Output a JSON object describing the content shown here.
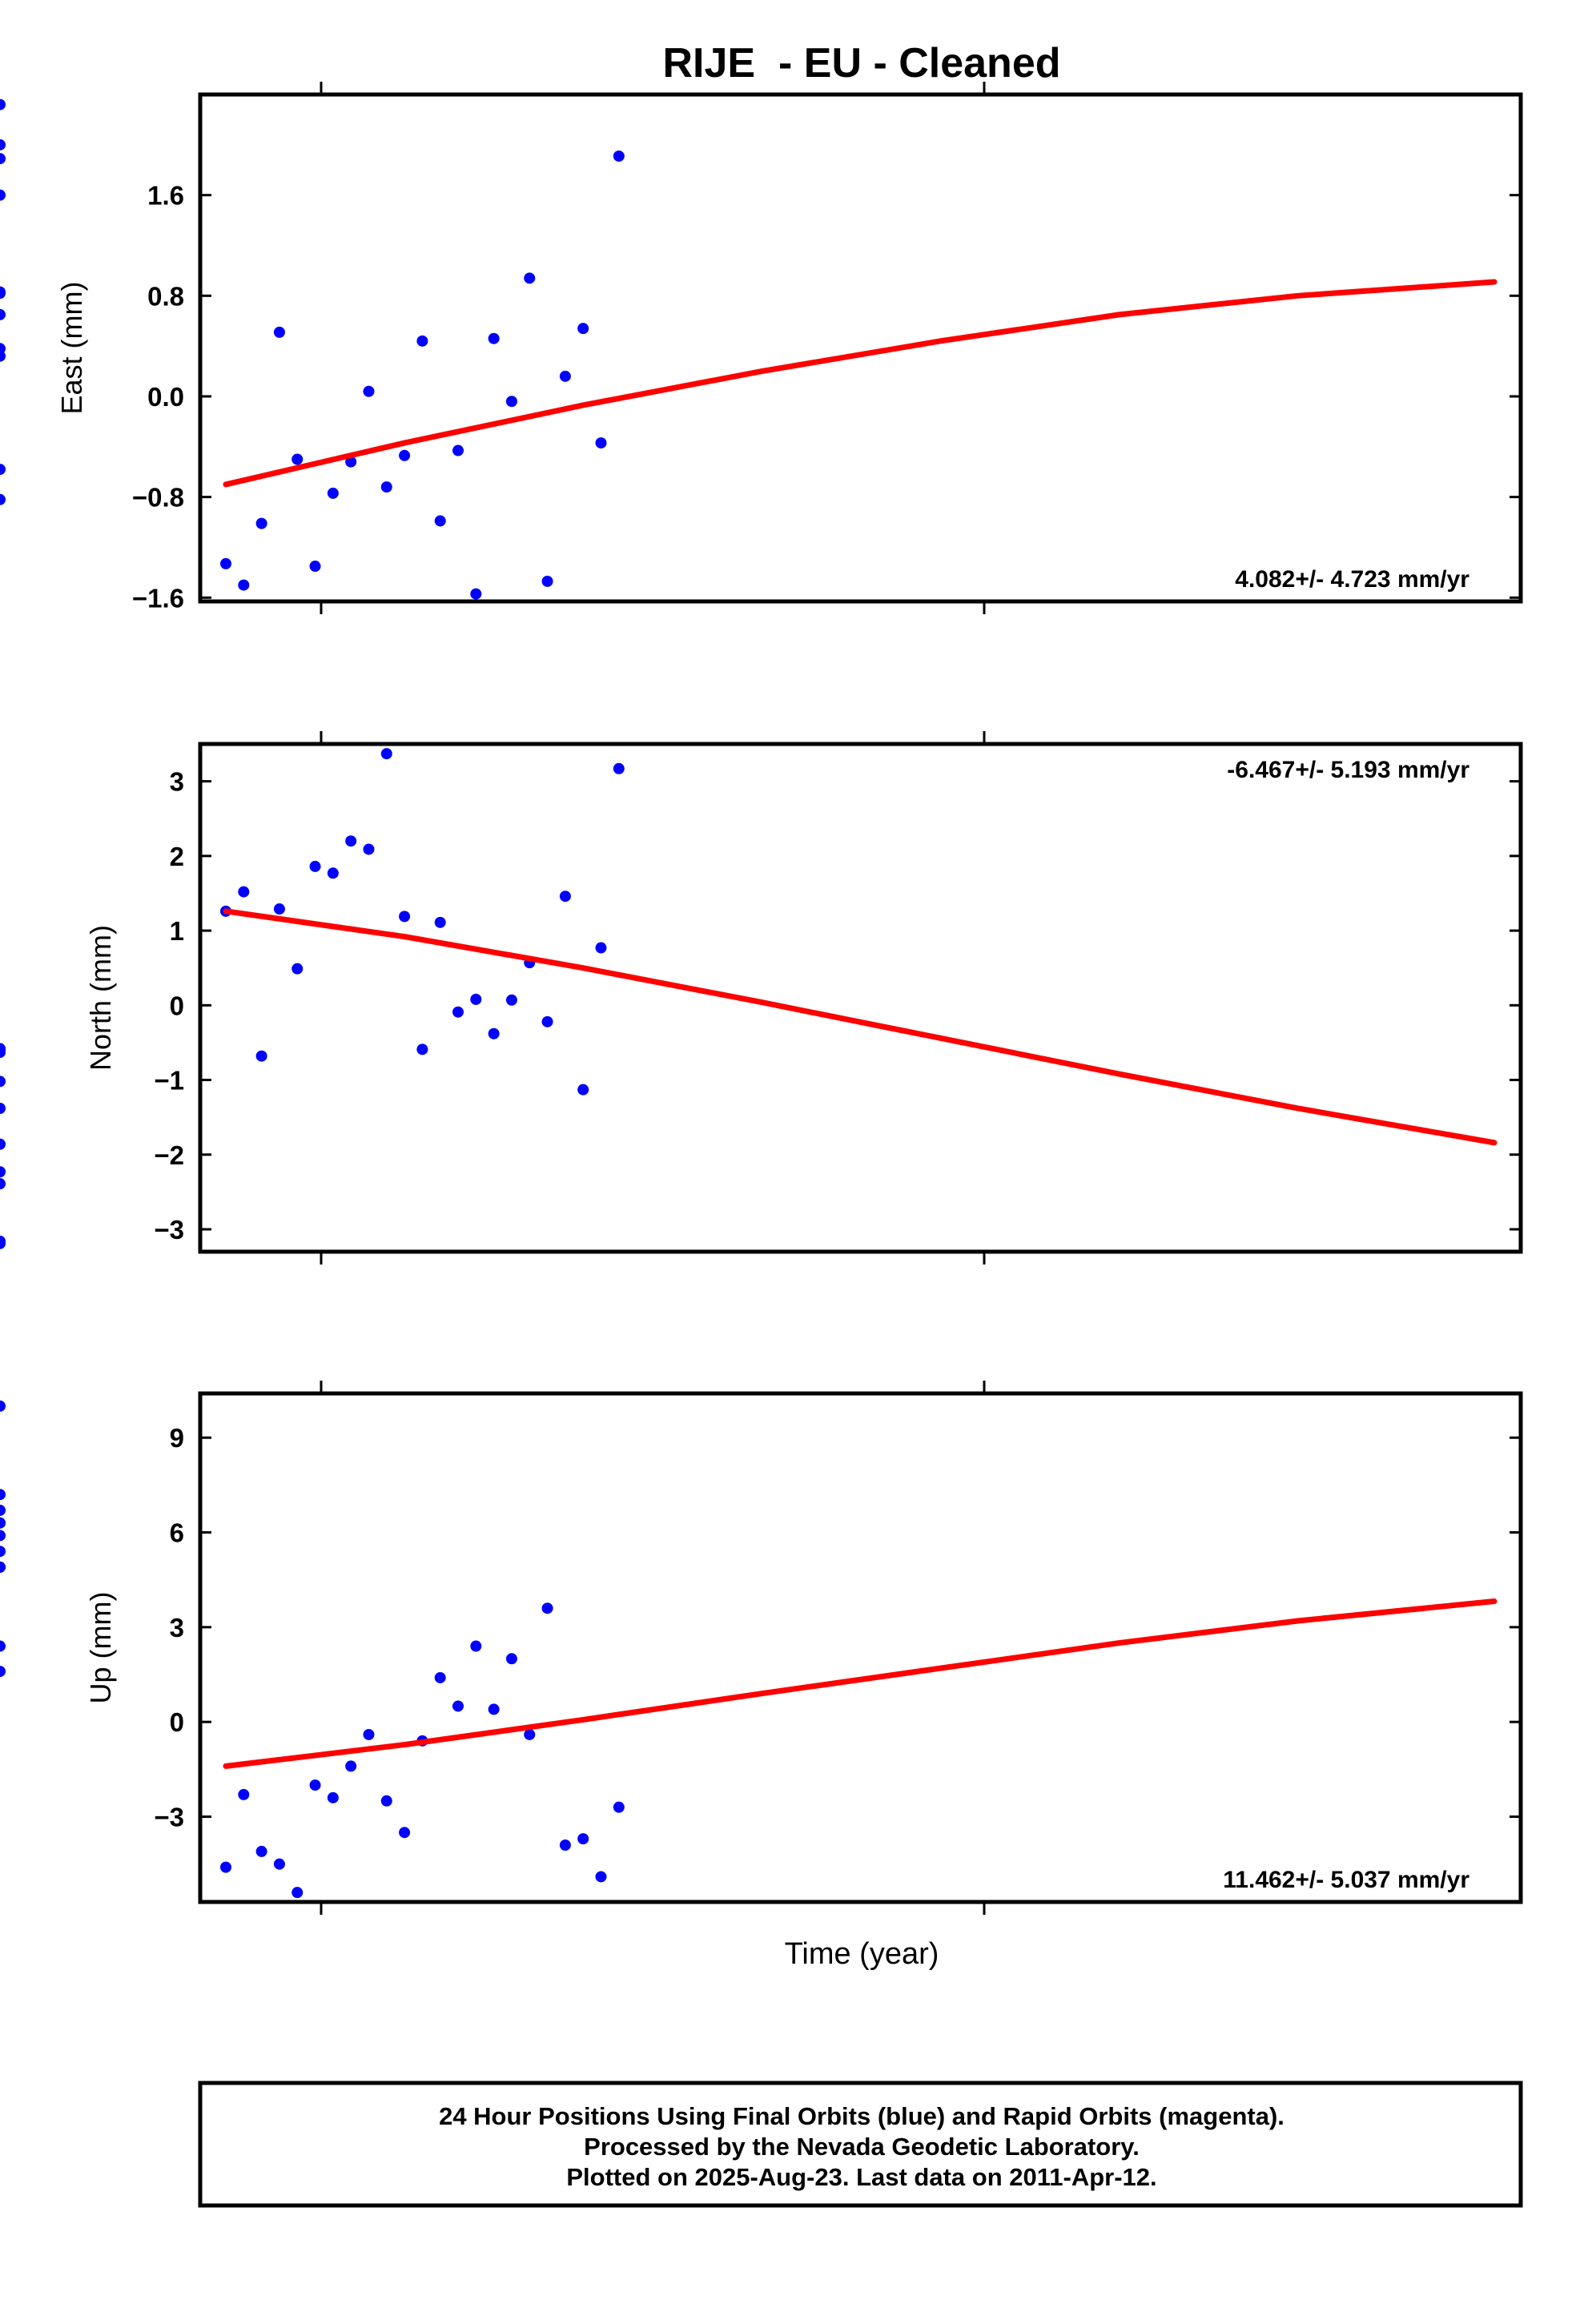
{
  "chart_data": {
    "title": "RIJE  - EU - Cleaned",
    "xlabel": "Time (year)",
    "footer": [
      "24 Hour Positions Using Final Orbits (blue) and Rapid Orbits (magenta).",
      "Processed by the Nevada Geodetic Laboratory.",
      "Plotted on 2025-Aug-23. Last data on 2011-Apr-12."
    ],
    "colors": {
      "points": "#0000ff",
      "fit": "#ff0000",
      "frame": "#000000"
    },
    "x_day_offsets_days": [
      0,
      1,
      2,
      3,
      4,
      5,
      6,
      7,
      8,
      9,
      10,
      11,
      12,
      13,
      14,
      15,
      16,
      17,
      18,
      19,
      20,
      21,
      22,
      23,
      60,
      61,
      62,
      63,
      64,
      65,
      66,
      67,
      68,
      69,
      70,
      71
    ],
    "panels": [
      {
        "type": "scatter",
        "ylabel": "East (mm)",
        "yticks": [
          "1.6",
          "0.8",
          "0.0",
          "−0.8",
          "−1.6"
        ],
        "ytick_values": [
          1.6,
          0.8,
          0.0,
          -0.8,
          -1.6
        ],
        "ylim": [
          -1.63,
          2.4
        ],
        "rate": "4.082+/- 4.723 mm/yr",
        "rate_position": "bottom-right",
        "values": [
          -1.33,
          -1.5,
          -1.01,
          0.51,
          -0.5,
          -1.35,
          -0.77,
          -0.52,
          0.04,
          -0.72,
          -0.47,
          0.44,
          -0.99,
          -0.43,
          -1.57,
          0.46,
          -0.04,
          0.94,
          -1.47,
          0.16,
          0.54,
          -0.37,
          1.91,
          1.89,
          0.65,
          0.82,
          0.32,
          -0.82,
          1.6,
          0.38,
          0.83,
          -0.58,
          2.0,
          2.32
        ],
        "value_day_indexes": [
          0,
          1,
          2,
          3,
          4,
          5,
          6,
          7,
          8,
          9,
          10,
          11,
          12,
          13,
          14,
          15,
          16,
          17,
          18,
          19,
          20,
          21,
          22,
          60,
          61,
          62,
          63,
          64,
          65,
          66,
          67,
          68,
          69,
          70
        ],
        "fit": {
          "x_day_offsets_days": [
            0,
            10,
            20,
            30,
            40,
            50,
            60,
            71
          ],
          "values": [
            -0.7,
            -0.37,
            -0.07,
            0.2,
            0.44,
            0.65,
            0.8,
            0.91
          ]
        }
      },
      {
        "type": "scatter",
        "ylabel": "North (mm)",
        "yticks": [
          "3",
          "2",
          "1",
          "0",
          "−1",
          "−2",
          "−3"
        ],
        "ytick_values": [
          3,
          2,
          1,
          0,
          -1,
          -2,
          -3
        ],
        "ylim": [
          -3.3,
          3.5
        ],
        "rate": "-6.467+/- 5.193 mm/yr",
        "rate_position": "top-right",
        "values": [
          1.26,
          1.52,
          -0.68,
          1.29,
          0.49,
          1.86,
          1.77,
          2.2,
          2.09,
          3.37,
          1.19,
          -0.59,
          1.11,
          -0.09,
          0.08,
          -0.38,
          0.07,
          0.57,
          -0.22,
          1.46,
          -1.13,
          0.77,
          3.17,
          -1.86,
          -1.38,
          -3.17,
          -3.19,
          -2.39,
          -1.02,
          -2.23,
          -0.63,
          -0.59,
          -0.58,
          -3.16
        ],
        "value_day_indexes": [
          0,
          1,
          2,
          3,
          4,
          5,
          6,
          7,
          8,
          9,
          10,
          11,
          12,
          13,
          14,
          15,
          16,
          17,
          18,
          19,
          20,
          21,
          22,
          60,
          61,
          63,
          64,
          65,
          66,
          67,
          68,
          69,
          70,
          71
        ],
        "fit": {
          "x_day_offsets_days": [
            0,
            10,
            20,
            30,
            40,
            50,
            60,
            71
          ],
          "values": [
            1.26,
            0.92,
            0.5,
            0.04,
            -0.44,
            -0.92,
            -1.38,
            -1.84
          ]
        }
      },
      {
        "type": "scatter",
        "ylabel": "Up (mm)",
        "yticks": [
          "9",
          "6",
          "3",
          "0",
          "−3"
        ],
        "ytick_values": [
          9,
          6,
          3,
          0,
          -3
        ],
        "ylim": [
          -5.7,
          10.4
        ],
        "rate": "11.462+/- 5.037 mm/yr",
        "rate_position": "bottom-right",
        "values": [
          -4.6,
          -2.3,
          -4.1,
          -4.5,
          -5.4,
          -2.0,
          -2.4,
          -1.4,
          -0.4,
          -2.5,
          -3.5,
          -0.6,
          1.4,
          0.5,
          2.4,
          0.4,
          2.0,
          -0.4,
          3.6,
          -3.9,
          -3.7,
          -4.9,
          -2.7,
          1.6,
          2.4,
          5.9,
          6.7,
          4.9,
          6.3,
          10.0,
          5.4,
          7.2,
          4.9,
          6.3
        ],
        "value_day_indexes": [
          0,
          1,
          2,
          3,
          4,
          5,
          6,
          7,
          8,
          9,
          10,
          11,
          12,
          13,
          14,
          15,
          16,
          17,
          18,
          19,
          20,
          21,
          22,
          60,
          61,
          62,
          63,
          64,
          65,
          66,
          67,
          68,
          69,
          70
        ],
        "fit": {
          "x_day_offsets_days": [
            0,
            10,
            20,
            30,
            40,
            50,
            60,
            71
          ],
          "values": [
            -1.4,
            -0.72,
            0.07,
            0.9,
            1.7,
            2.5,
            3.2,
            3.82
          ]
        }
      }
    ]
  }
}
